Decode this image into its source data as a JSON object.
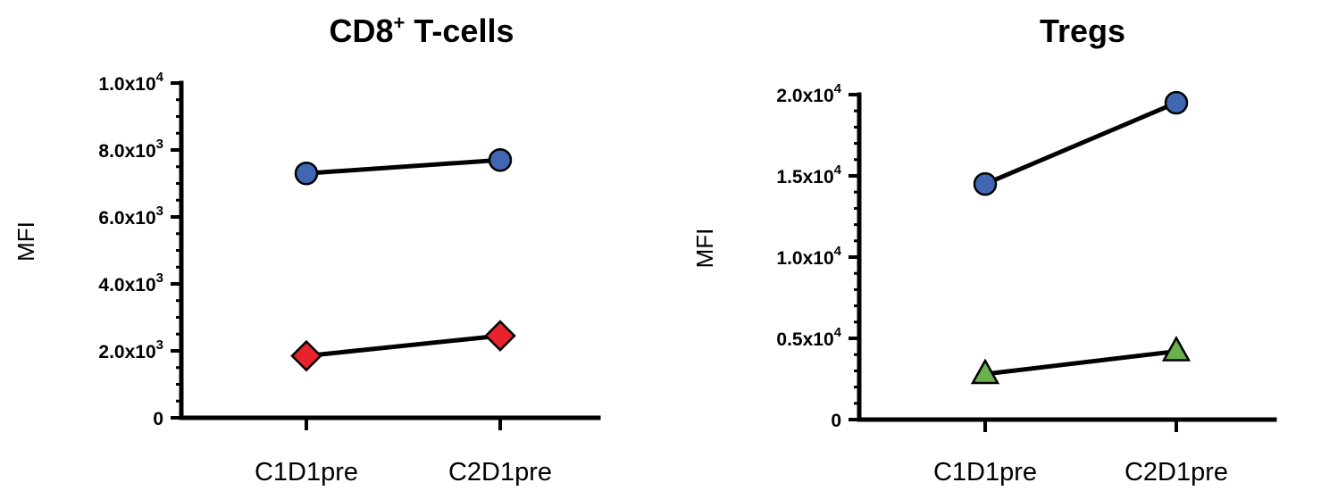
{
  "chart_data": [
    {
      "type": "line",
      "title": "CD8",
      "title_sup": "+",
      "title_rest": " T-cells",
      "ylabel": "MFI",
      "categories": [
        "C1D1pre",
        "C2D1pre"
      ],
      "ylim": [
        0,
        10000
      ],
      "yticks": [
        {
          "value": 0,
          "base": "0",
          "exp": ""
        },
        {
          "value": 2000,
          "base": "2.0x10",
          "exp": "3"
        },
        {
          "value": 4000,
          "base": "4.0x10",
          "exp": "3"
        },
        {
          "value": 6000,
          "base": "6.0x10",
          "exp": "3"
        },
        {
          "value": 8000,
          "base": "8.0x10",
          "exp": "3"
        },
        {
          "value": 10000,
          "base": "1.0x10",
          "exp": "4"
        }
      ],
      "minor_step": 500,
      "grid": false,
      "series": [
        {
          "values": [
            7300,
            7700
          ],
          "marker": "circle",
          "color": "#4267b2"
        },
        {
          "values": [
            1850,
            2450
          ],
          "marker": "diamond",
          "color": "#e8232b"
        }
      ]
    },
    {
      "type": "line",
      "title": "Tregs",
      "title_sup": "",
      "title_rest": "",
      "ylabel": "MFI",
      "categories": [
        "C1D1pre",
        "C2D1pre"
      ],
      "ylim": [
        0,
        20000
      ],
      "yticks": [
        {
          "value": 0,
          "base": "0",
          "exp": ""
        },
        {
          "value": 5000,
          "base": "0.5x10",
          "exp": "4"
        },
        {
          "value": 10000,
          "base": "1.0x10",
          "exp": "4"
        },
        {
          "value": 15000,
          "base": "1.5x10",
          "exp": "4"
        },
        {
          "value": 20000,
          "base": "2.0x10",
          "exp": "4"
        }
      ],
      "minor_step": 1000,
      "grid": false,
      "series": [
        {
          "values": [
            14500,
            19500
          ],
          "marker": "circle",
          "color": "#4267b2"
        },
        {
          "values": [
            2800,
            4200
          ],
          "marker": "triangle",
          "color": "#6ab04c"
        }
      ]
    }
  ]
}
